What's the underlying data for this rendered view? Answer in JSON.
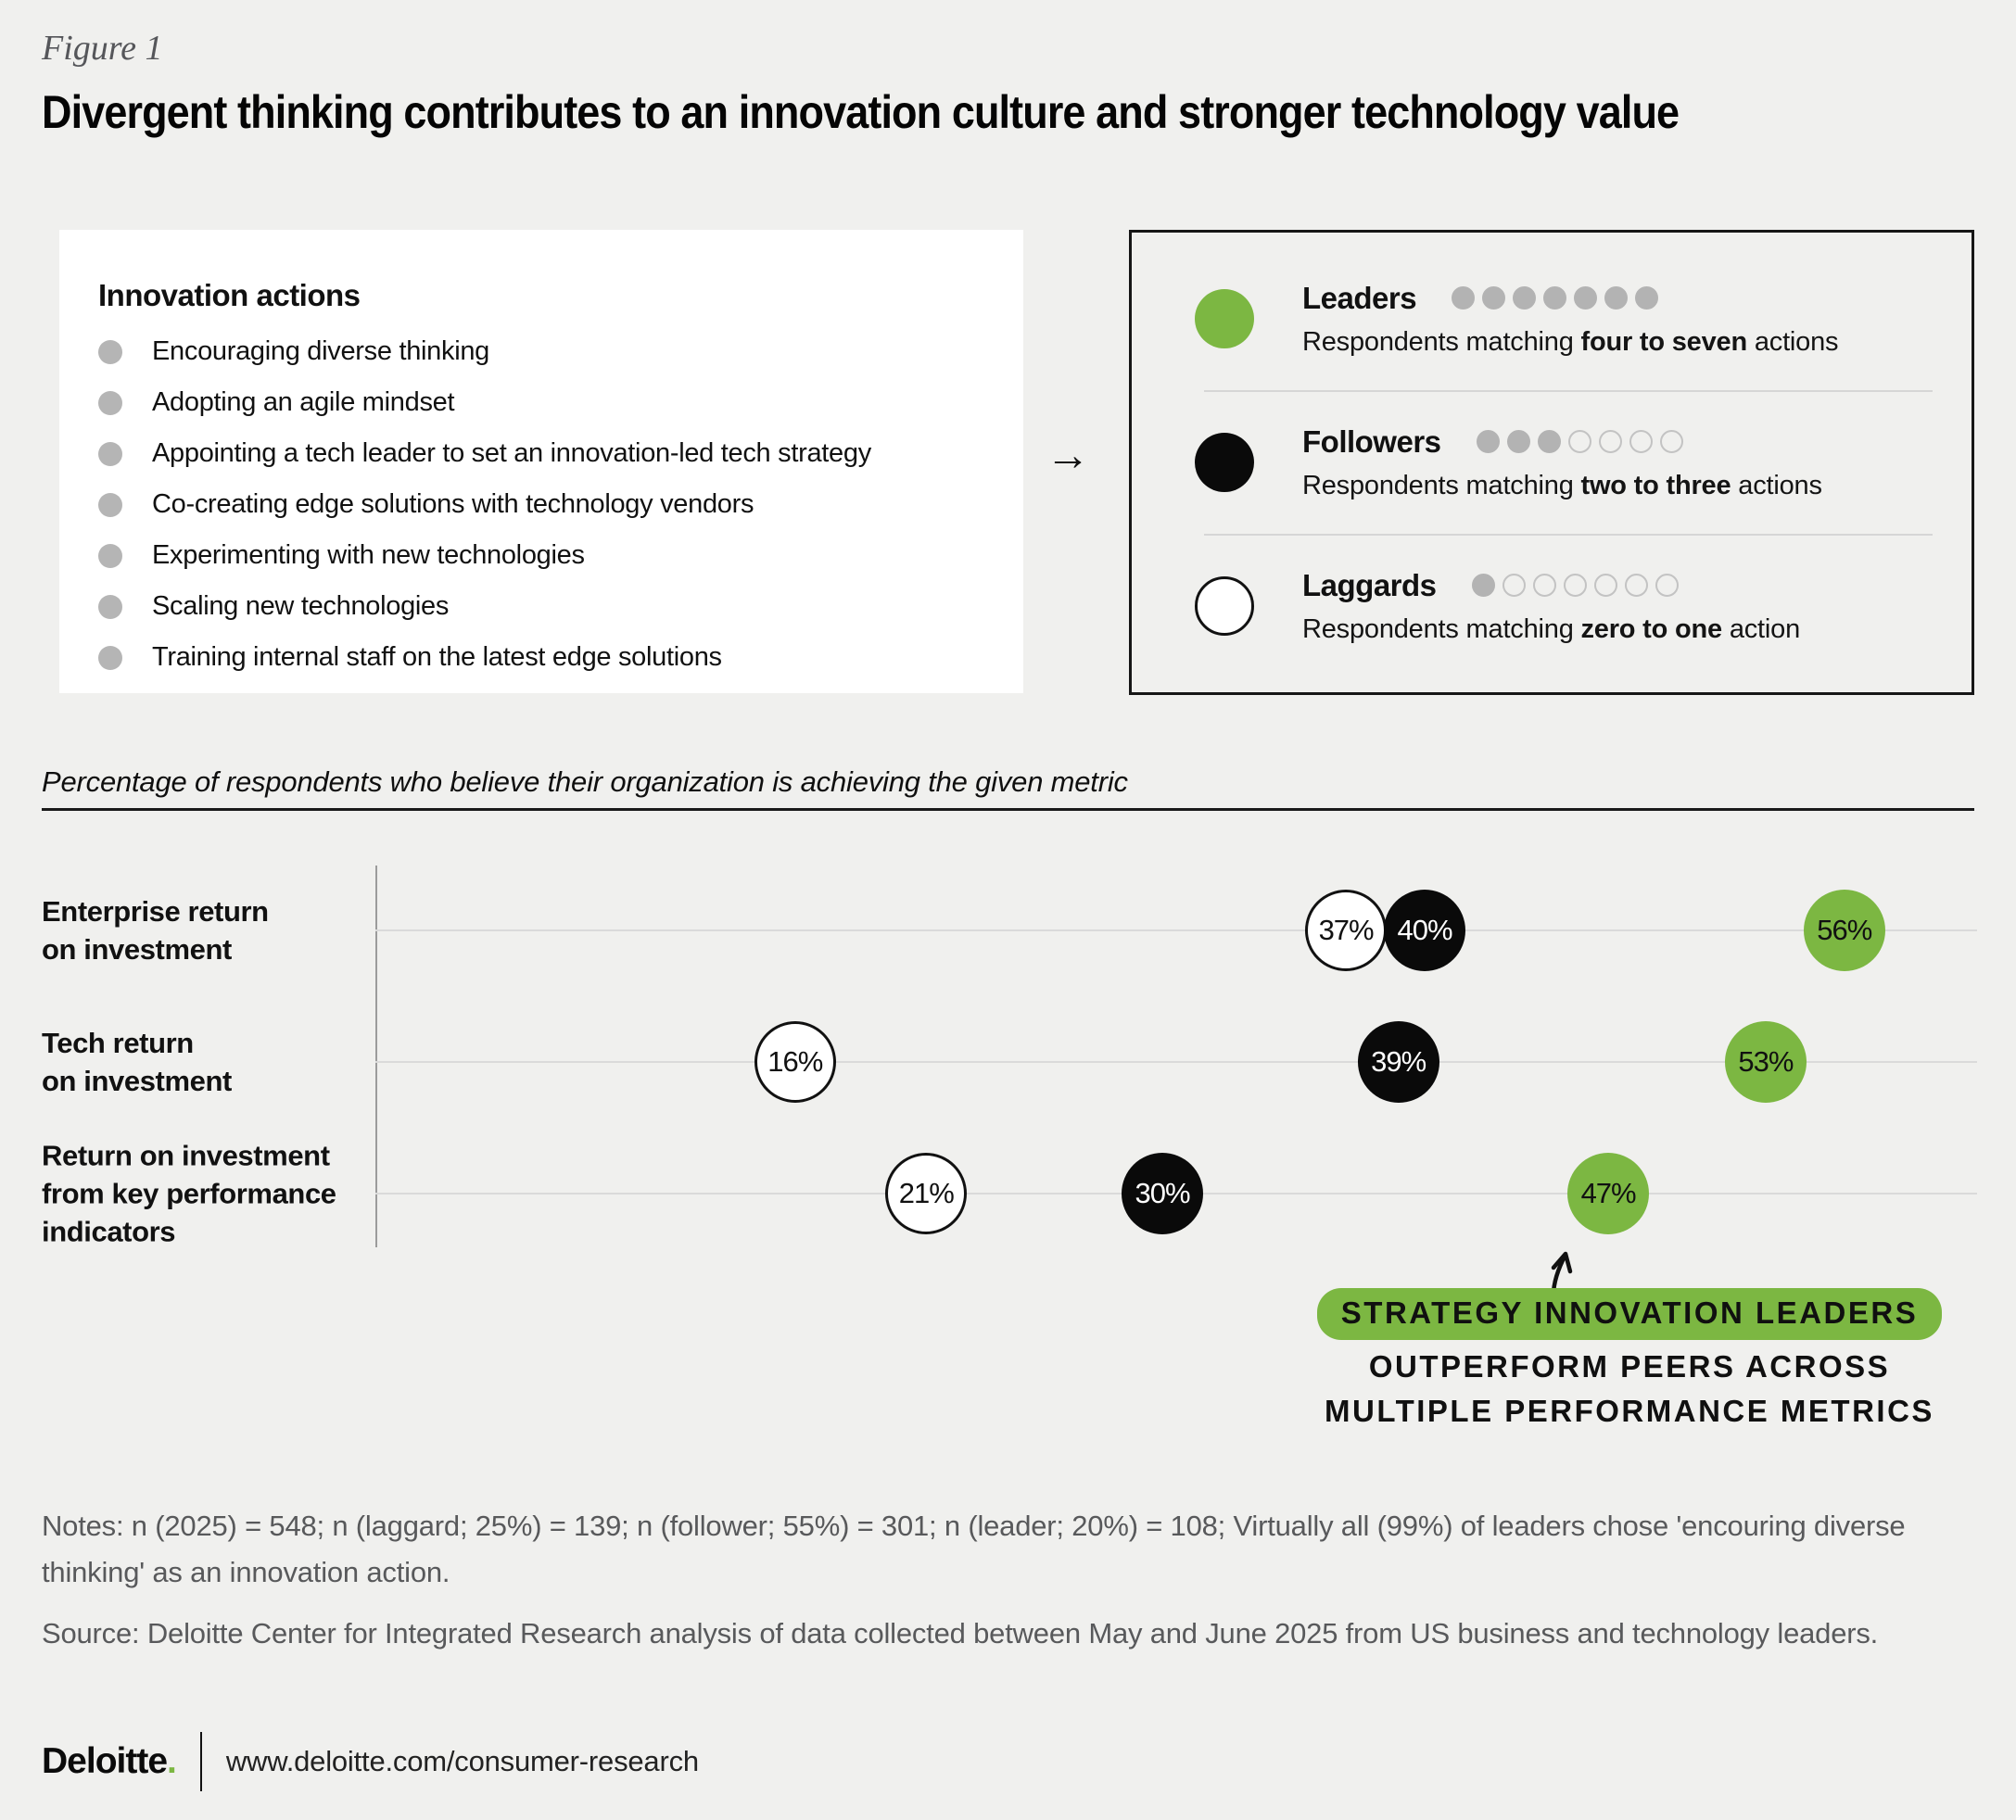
{
  "figure_label": "Figure 1",
  "title": "Divergent thinking contributes to an innovation culture and stronger technology value",
  "innovation_box": {
    "heading": "Innovation actions",
    "items": [
      "Encouraging diverse thinking",
      "Adopting an agile mindset",
      "Appointing a tech leader to set an innovation-led tech strategy",
      "Co-creating edge solutions with technology vendors",
      "Experimenting with new technologies",
      "Scaling new technologies",
      "Training internal staff on the latest edge solutions"
    ]
  },
  "flow_arrow_glyph": "→",
  "legend": {
    "groups": [
      {
        "name": "Leaders",
        "key": "leader",
        "color": "#7cb742",
        "border": false,
        "dots_filled": 7,
        "dots_total": 7,
        "desc_prefix": "Respondents matching ",
        "desc_bold": "four to seven",
        "desc_suffix": " actions"
      },
      {
        "name": "Followers",
        "key": "follower",
        "color": "#0a0a0a",
        "border": false,
        "dots_filled": 3,
        "dots_total": 7,
        "desc_prefix": "Respondents matching ",
        "desc_bold": "two to three",
        "desc_suffix": " actions"
      },
      {
        "name": "Laggards",
        "key": "laggard",
        "color": "#ffffff",
        "border": true,
        "dots_filled": 1,
        "dots_total": 7,
        "desc_prefix": "Respondents matching ",
        "desc_bold": "zero to one",
        "desc_suffix": " action"
      }
    ]
  },
  "chart_caption": "Percentage of respondents who believe their organization is achieving the given metric",
  "chart_data": {
    "type": "scatter",
    "subtype": "dot-plot",
    "unit": "%",
    "categories": [
      "Enterprise return on investment",
      "Tech return on investment",
      "Return on investment from key performance indicators"
    ],
    "categories_lines": [
      [
        "Enterprise return",
        "on investment"
      ],
      [
        "Tech return",
        "on investment"
      ],
      [
        "Return on investment",
        "from key performance",
        "indicators"
      ]
    ],
    "series": [
      {
        "name": "Laggards",
        "key": "laggard",
        "color": "#ffffff",
        "text_color": "#111111",
        "stroke": "#111111",
        "values": [
          37,
          16,
          21
        ]
      },
      {
        "name": "Followers",
        "key": "follower",
        "color": "#0a0a0a",
        "text_color": "#ffffff",
        "stroke": null,
        "values": [
          40,
          39,
          30
        ]
      },
      {
        "name": "Leaders",
        "key": "leader",
        "color": "#7cb742",
        "text_color": "#111111",
        "stroke": null,
        "values": [
          56,
          53,
          47
        ]
      }
    ],
    "xlim": [
      0,
      61
    ],
    "x_axis_labels_visible": false,
    "grid": "one horizontal line per category",
    "legend_position": "top-right box"
  },
  "annotation": {
    "line1": "STRATEGY INNOVATION LEADERS",
    "line2": "OUTPERFORM PEERS ACROSS",
    "line3": "MULTIPLE PERFORMANCE METRICS",
    "highlight_color": "#7cb742",
    "arrow_target_value": "47%"
  },
  "notes": "Notes: n (2025) = 548; n (laggard; 25%) = 139; n (follower; 55%) = 301; n (leader; 20%) = 108; Virtually all (99%) of leaders chose 'encouring diverse thinking' as an innovation action.",
  "source": "Source: Deloitte Center for Integrated Research analysis of data collected between May and June 2025 from US business and technology leaders.",
  "footer": {
    "brand": "Deloitte",
    "brand_dot": ".",
    "url": "www.deloitte.com/consumer-research"
  },
  "colors": {
    "background": "#f0f0ee",
    "panel_white": "#ffffff",
    "brand_green": "#7cb742",
    "black": "#0a0a0a",
    "gridline": "#dadada",
    "axis": "#9b9b9b",
    "muted_text": "#58595b",
    "bullet_gray": "#b5b5b5"
  }
}
